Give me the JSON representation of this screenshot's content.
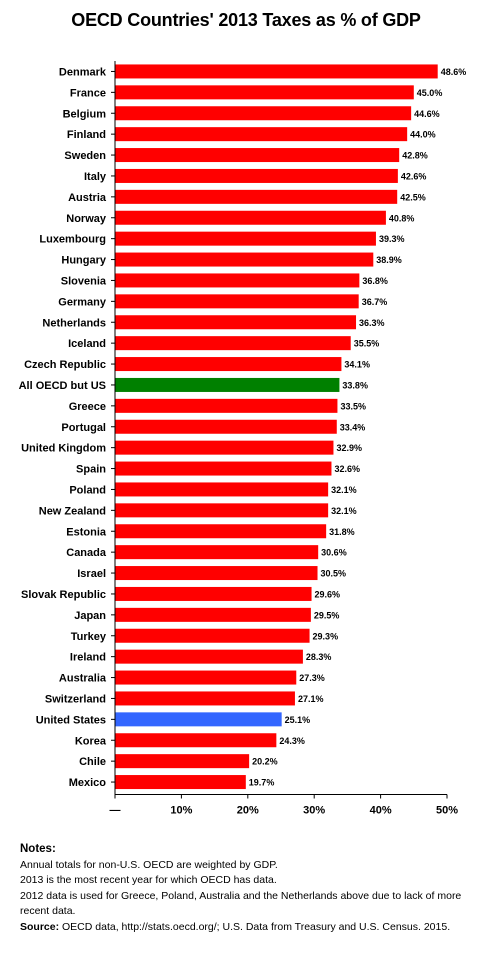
{
  "chart_data": {
    "type": "bar",
    "orientation": "horizontal",
    "title": "OECD Countries' 2013 Taxes as % of GDP",
    "categories": [
      "Denmark",
      "France",
      "Belgium",
      "Finland",
      "Sweden",
      "Italy",
      "Austria",
      "Norway",
      "Luxembourg",
      "Hungary",
      "Slovenia",
      "Germany",
      "Netherlands",
      "Iceland",
      "Czech Republic",
      "All OECD but US",
      "Greece",
      "Portugal",
      "United Kingdom",
      "Spain",
      "Poland",
      "New Zealand",
      "Estonia",
      "Canada",
      "Israel",
      "Slovak Republic",
      "Japan",
      "Turkey",
      "Ireland",
      "Australia",
      "Switzerland",
      "United States",
      "Korea",
      "Chile",
      "Mexico"
    ],
    "values": [
      48.6,
      45.0,
      44.6,
      44.0,
      42.8,
      42.6,
      42.5,
      40.8,
      39.3,
      38.9,
      36.8,
      36.7,
      36.3,
      35.5,
      34.1,
      33.8,
      33.5,
      33.4,
      32.9,
      32.6,
      32.1,
      32.1,
      31.8,
      30.6,
      30.5,
      29.6,
      29.5,
      29.3,
      28.3,
      27.3,
      27.1,
      25.1,
      24.3,
      20.2,
      19.7
    ],
    "value_labels": [
      "48.6%",
      "45.0%",
      "44.6%",
      "44.0%",
      "42.8%",
      "42.6%",
      "42.5%",
      "40.8%",
      "39.3%",
      "38.9%",
      "36.8%",
      "36.7%",
      "36.3%",
      "35.5%",
      "34.1%",
      "33.8%",
      "33.5%",
      "33.4%",
      "32.9%",
      "32.6%",
      "32.1%",
      "32.1%",
      "31.8%",
      "30.6%",
      "30.5%",
      "29.6%",
      "29.5%",
      "29.3%",
      "28.3%",
      "27.3%",
      "27.1%",
      "25.1%",
      "24.3%",
      "20.2%",
      "19.7%"
    ],
    "colors": {
      "default": "#ff0000",
      "All OECD but US": "#008000",
      "United States": "#3366ff"
    },
    "xlim": [
      0,
      50
    ],
    "xticks": [
      0,
      10,
      20,
      30,
      40,
      50
    ],
    "xtick_labels": [
      "—",
      "10%",
      "20%",
      "30%",
      "40%",
      "50%"
    ],
    "grid": false
  },
  "notes": {
    "heading": "Notes:",
    "lines": [
      "Annual totals for non-U.S. OECD are weighted by GDP.",
      "2013 is the most recent year for which OECD has data.",
      "2012 data is used for Greece, Poland, Australia and the Netherlands above due to lack of more recent data."
    ],
    "source_label": "Source:",
    "source_text": " OECD data, http://stats.oecd.org/; U.S. Data from Treasury and U.S. Census. 2015."
  }
}
